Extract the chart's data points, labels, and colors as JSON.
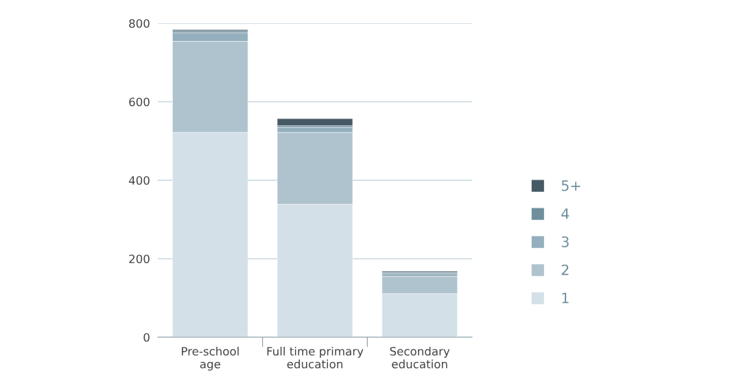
{
  "chart_data": {
    "type": "bar",
    "stacked": true,
    "categories": [
      "Pre-school\nage",
      "Full time primary\neducation",
      "Secondary\neducation"
    ],
    "series": [
      {
        "name": "1",
        "color": "#d4e0e8",
        "values": [
          522,
          339,
          111
        ]
      },
      {
        "name": "2",
        "color": "#afc3cf",
        "values": [
          232,
          183,
          44
        ]
      },
      {
        "name": "3",
        "color": "#94afbd",
        "values": [
          22,
          13,
          7
        ]
      },
      {
        "name": "4",
        "color": "#6f8f9d",
        "values": [
          5,
          4,
          3
        ]
      },
      {
        "name": "5+",
        "color": "#465a66",
        "values": [
          3,
          18,
          3
        ]
      }
    ],
    "ylim": [
      0,
      800
    ],
    "yticks": [
      0,
      200,
      400,
      600,
      800
    ],
    "grid": "y",
    "legend": "right"
  }
}
